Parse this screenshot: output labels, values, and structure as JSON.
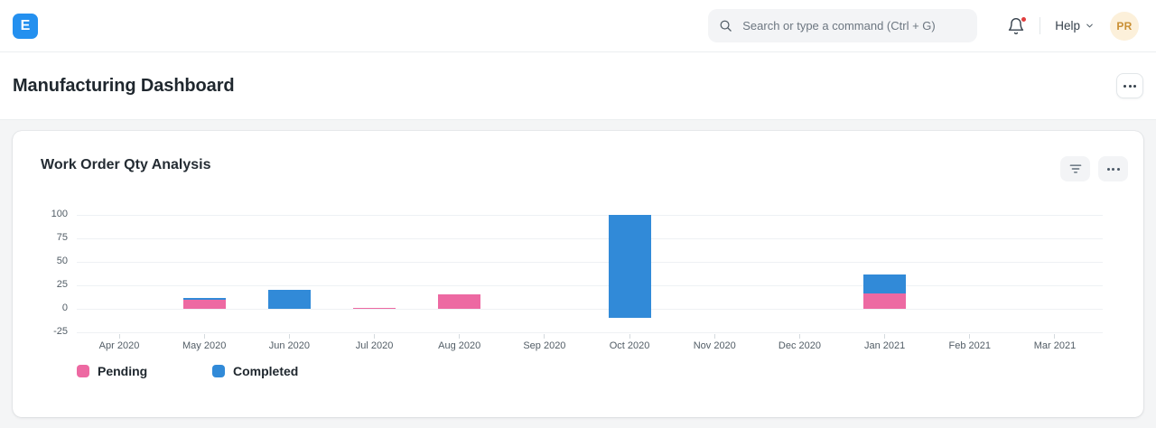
{
  "navbar": {
    "logo_letter": "E",
    "search": {
      "placeholder": "Search or type a command (Ctrl + G)"
    },
    "help_label": "Help",
    "avatar_initials": "PR"
  },
  "page": {
    "title": "Manufacturing Dashboard"
  },
  "card": {
    "title": "Work Order Qty Analysis"
  },
  "chart_data": {
    "type": "bar",
    "stacked": true,
    "title": "Work Order Qty Analysis",
    "categories": [
      "Apr 2020",
      "May 2020",
      "Jun 2020",
      "Jul 2020",
      "Aug 2020",
      "Sep 2020",
      "Oct 2020",
      "Nov 2020",
      "Dec 2020",
      "Jan 2021",
      "Feb 2021",
      "Mar 2021"
    ],
    "series": [
      {
        "name": "Pending",
        "color": "#ed69a2",
        "values": [
          0,
          10,
          0,
          1,
          15,
          0,
          -10,
          0,
          0,
          16,
          0,
          0
        ]
      },
      {
        "name": "Completed",
        "color": "#318ad8",
        "values": [
          0,
          2,
          20,
          0,
          0,
          0,
          110,
          0,
          0,
          21,
          0,
          0
        ]
      }
    ],
    "y_ticks": [
      100,
      75,
      50,
      25,
      0,
      -25
    ],
    "ylim": [
      -25,
      105
    ],
    "xlabel": "",
    "ylabel": "",
    "grid": true,
    "legend_position": "bottom"
  },
  "colors": {
    "accent": "#2490ef",
    "pending": "#ed69a2",
    "completed": "#318ad8",
    "notification_dot": "#e03e3e"
  }
}
